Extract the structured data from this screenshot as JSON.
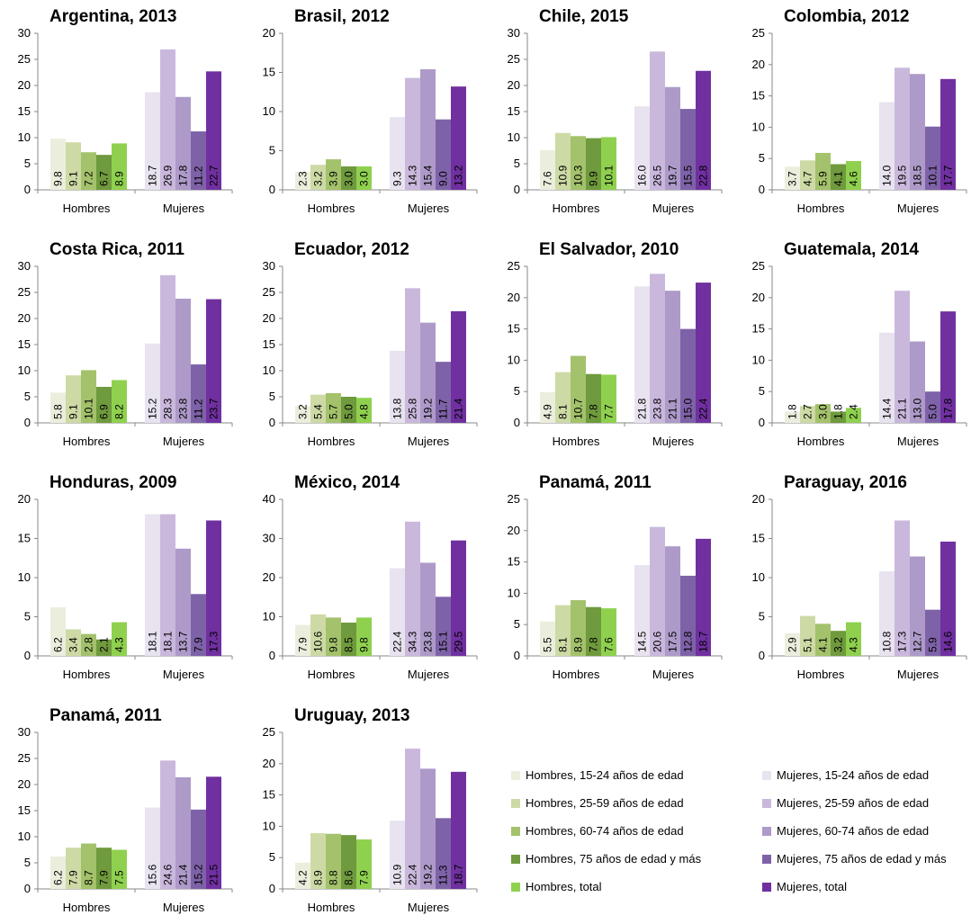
{
  "colors": {
    "hombres": [
      "#ebeedd",
      "#cddaa5",
      "#a3c26b",
      "#6f9a3d",
      "#8fd14f"
    ],
    "mujeres": [
      "#e8e3ef",
      "#c9b8dc",
      "#ad9ac8",
      "#7e62a8",
      "#7030a0"
    ]
  },
  "legend": {
    "items": [
      {
        "label": "Hombres, 15-24 años de edad",
        "color": "#ebeedd"
      },
      {
        "label": "Hombres, 25-59 años de edad",
        "color": "#cddaa5"
      },
      {
        "label": "Hombres, 60-74 años de edad",
        "color": "#a3c26b"
      },
      {
        "label": "Hombres, 75 años de edad y más",
        "color": "#6f9a3d"
      },
      {
        "label": "Hombres, total",
        "color": "#8fd14f"
      },
      {
        "label": "Mujeres, 15-24 años de edad",
        "color": "#e8e3ef"
      },
      {
        "label": "Mujeres, 25-59 años de edad",
        "color": "#c9b8dc"
      },
      {
        "label": "Mujeres, 60-74 años de edad",
        "color": "#ad9ac8"
      },
      {
        "label": "Mujeres, 75 años de edad y más",
        "color": "#7e62a8"
      },
      {
        "label": "Mujeres, total",
        "color": "#7030a0"
      }
    ]
  },
  "chart_data": [
    {
      "type": "bar",
      "title": "Argentina, 2013",
      "categories": [
        "Hombres",
        "Mujeres"
      ],
      "ylim": [
        0,
        30
      ],
      "ticks": [
        0,
        5,
        10,
        15,
        20,
        25,
        30
      ],
      "hombres": [
        "9.8",
        "9.1",
        "7.2",
        "6.7",
        "8.9"
      ],
      "mujeres": [
        "18.7",
        "26.9",
        "17.8",
        "11.2",
        "22.7"
      ]
    },
    {
      "type": "bar",
      "title": "Brasil, 2012",
      "categories": [
        "Hombres",
        "Mujeres"
      ],
      "ylim": [
        0,
        20
      ],
      "ticks": [
        0,
        5,
        10,
        15,
        20
      ],
      "hombres": [
        "2.3",
        "3.2",
        "3.9",
        "3.0",
        "3.0"
      ],
      "mujeres": [
        "9.3",
        "14.3",
        "15.4",
        "9.0",
        "13.2"
      ]
    },
    {
      "type": "bar",
      "title": "Chile, 2015",
      "categories": [
        "Hombres",
        "Mujeres"
      ],
      "ylim": [
        0,
        30
      ],
      "ticks": [
        0,
        5,
        10,
        15,
        20,
        25,
        30
      ],
      "hombres": [
        "7.6",
        "10.9",
        "10.3",
        "9.9",
        "10.1"
      ],
      "mujeres": [
        "16.0",
        "26.5",
        "19.7",
        "15.5",
        "22.8"
      ]
    },
    {
      "type": "bar",
      "title": "Colombia, 2012",
      "categories": [
        "Hombres",
        "Mujeres"
      ],
      "ylim": [
        0,
        25
      ],
      "ticks": [
        0,
        5,
        10,
        15,
        20,
        25
      ],
      "hombres": [
        "3.7",
        "4.7",
        "5.9",
        "4.1",
        "4.6"
      ],
      "mujeres": [
        "14.0",
        "19.5",
        "18.5",
        "10.1",
        "17.7"
      ]
    },
    {
      "type": "bar",
      "title": "Costa Rica, 2011",
      "categories": [
        "Hombres",
        "Mujeres"
      ],
      "ylim": [
        0,
        30
      ],
      "ticks": [
        0,
        5,
        10,
        15,
        20,
        25,
        30
      ],
      "hombres": [
        "5.8",
        "9.1",
        "10.1",
        "6.9",
        "8.2"
      ],
      "mujeres": [
        "15.2",
        "28.3",
        "23.8",
        "11.2",
        "23.7"
      ]
    },
    {
      "type": "bar",
      "title": "Ecuador, 2012",
      "categories": [
        "Hombres",
        "Mujeres"
      ],
      "ylim": [
        0,
        30
      ],
      "ticks": [
        0,
        5,
        10,
        15,
        20,
        25,
        30
      ],
      "hombres": [
        "3.2",
        "5.4",
        "5.7",
        "5.0",
        "4.8"
      ],
      "mujeres": [
        "13.8",
        "25.8",
        "19.2",
        "11.7",
        "21.4"
      ]
    },
    {
      "type": "bar",
      "title": "El Salvador, 2010",
      "categories": [
        "Hombres",
        "Mujeres"
      ],
      "ylim": [
        0,
        25
      ],
      "ticks": [
        0,
        5,
        10,
        15,
        20,
        25
      ],
      "hombres": [
        "4.9",
        "8.1",
        "10.7",
        "7.8",
        "7.7"
      ],
      "mujeres": [
        "21.8",
        "23.8",
        "21.1",
        "15.0",
        "22.4"
      ]
    },
    {
      "type": "bar",
      "title": "Guatemala, 2014",
      "categories": [
        "Hombres",
        "Mujeres"
      ],
      "ylim": [
        0,
        25
      ],
      "ticks": [
        0,
        5,
        10,
        15,
        20,
        25
      ],
      "hombres": [
        "1.8",
        "2.7",
        "3.0",
        "1.8",
        "2.4"
      ],
      "mujeres": [
        "14.4",
        "21.1",
        "13.0",
        "5.0",
        "17.8"
      ]
    },
    {
      "type": "bar",
      "title": "Honduras, 2009",
      "categories": [
        "Hombres",
        "Mujeres"
      ],
      "ylim": [
        0,
        20
      ],
      "ticks": [
        0,
        5,
        10,
        15,
        20
      ],
      "hombres": [
        "6.2",
        "3.4",
        "2.8",
        "2.1",
        "4.3"
      ],
      "mujeres": [
        "18.1",
        "18.1",
        "13.7",
        "7.9",
        "17.3"
      ]
    },
    {
      "type": "bar",
      "title": "México, 2014",
      "categories": [
        "Hombres",
        "Mujeres"
      ],
      "ylim": [
        0,
        40
      ],
      "ticks": [
        0,
        10,
        20,
        30,
        40
      ],
      "hombres": [
        "7.9",
        "10.6",
        "9.8",
        "8.5",
        "9.8"
      ],
      "mujeres": [
        "22.4",
        "34.3",
        "23.8",
        "15.1",
        "29.5"
      ]
    },
    {
      "type": "bar",
      "title": "Panamá, 2011",
      "categories": [
        "Hombres",
        "Mujeres"
      ],
      "ylim": [
        0,
        25
      ],
      "ticks": [
        0,
        5,
        10,
        15,
        20,
        25
      ],
      "hombres": [
        "5.5",
        "8.1",
        "8.9",
        "7.8",
        "7.6"
      ],
      "mujeres": [
        "14.5",
        "20.6",
        "17.5",
        "12.8",
        "18.7"
      ]
    },
    {
      "type": "bar",
      "title": "Paraguay, 2016",
      "categories": [
        "Hombres",
        "Mujeres"
      ],
      "ylim": [
        0,
        20
      ],
      "ticks": [
        0,
        5,
        10,
        15,
        20
      ],
      "hombres": [
        "2.9",
        "5.1",
        "4.1",
        "3.2",
        "4.3"
      ],
      "mujeres": [
        "10.8",
        "17.3",
        "12.7",
        "5.9",
        "14.6"
      ]
    },
    {
      "type": "bar",
      "title": "Panamá, 2011",
      "categories": [
        "Hombres",
        "Mujeres"
      ],
      "ylim": [
        0,
        30
      ],
      "ticks": [
        0,
        5,
        10,
        15,
        20,
        25,
        30
      ],
      "hombres": [
        "6.2",
        "7.9",
        "8.7",
        "7.9",
        "7.5"
      ],
      "mujeres": [
        "15.6",
        "24.6",
        "21.4",
        "15.2",
        "21.5"
      ]
    },
    {
      "type": "bar",
      "title": "Uruguay, 2013",
      "categories": [
        "Hombres",
        "Mujeres"
      ],
      "ylim": [
        0,
        25
      ],
      "ticks": [
        0,
        5,
        10,
        15,
        20,
        25
      ],
      "hombres": [
        "4.2",
        "8.9",
        "8.8",
        "8.6",
        "7.9"
      ],
      "mujeres": [
        "10.9",
        "22.4",
        "19.2",
        "11.3",
        "18.7"
      ]
    }
  ]
}
